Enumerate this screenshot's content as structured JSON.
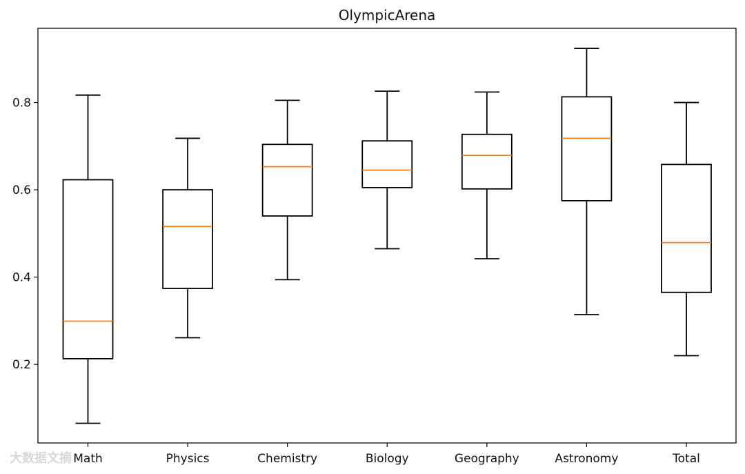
{
  "chart_data": {
    "type": "boxplot",
    "title": "OlympicArena",
    "xlabel": "",
    "ylabel": "",
    "ylim": [
      0.02,
      0.97
    ],
    "yticks": [
      0.2,
      0.4,
      0.6,
      0.8
    ],
    "ytick_labels": [
      "0.2",
      "0.4",
      "0.6",
      "0.8"
    ],
    "categories": [
      "Math",
      "Physics",
      "Chemistry",
      "Biology",
      "Geography",
      "Astronomy",
      "Total"
    ],
    "boxes": [
      {
        "name": "Math",
        "whisker_low": 0.065,
        "q1": 0.213,
        "median": 0.299,
        "q3": 0.623,
        "whisker_high": 0.817
      },
      {
        "name": "Physics",
        "whisker_low": 0.261,
        "q1": 0.374,
        "median": 0.516,
        "q3": 0.6,
        "whisker_high": 0.718
      },
      {
        "name": "Chemistry",
        "whisker_low": 0.394,
        "q1": 0.54,
        "median": 0.653,
        "q3": 0.704,
        "whisker_high": 0.805
      },
      {
        "name": "Biology",
        "whisker_low": 0.465,
        "q1": 0.605,
        "median": 0.645,
        "q3": 0.712,
        "whisker_high": 0.826
      },
      {
        "name": "Geography",
        "whisker_low": 0.442,
        "q1": 0.602,
        "median": 0.679,
        "q3": 0.727,
        "whisker_high": 0.824
      },
      {
        "name": "Astronomy",
        "whisker_low": 0.314,
        "q1": 0.575,
        "median": 0.718,
        "q3": 0.813,
        "whisker_high": 0.924
      },
      {
        "name": "Total",
        "whisker_low": 0.22,
        "q1": 0.365,
        "median": 0.479,
        "q3": 0.658,
        "whisker_high": 0.8
      }
    ],
    "colors": {
      "box": "#000000",
      "median": "#ff7f0e",
      "axes": "#000000",
      "background": "#ffffff"
    },
    "grid": false,
    "legend": "none"
  },
  "watermark": {
    "text": "大数据文摘",
    "color": "#d8d8d8"
  }
}
